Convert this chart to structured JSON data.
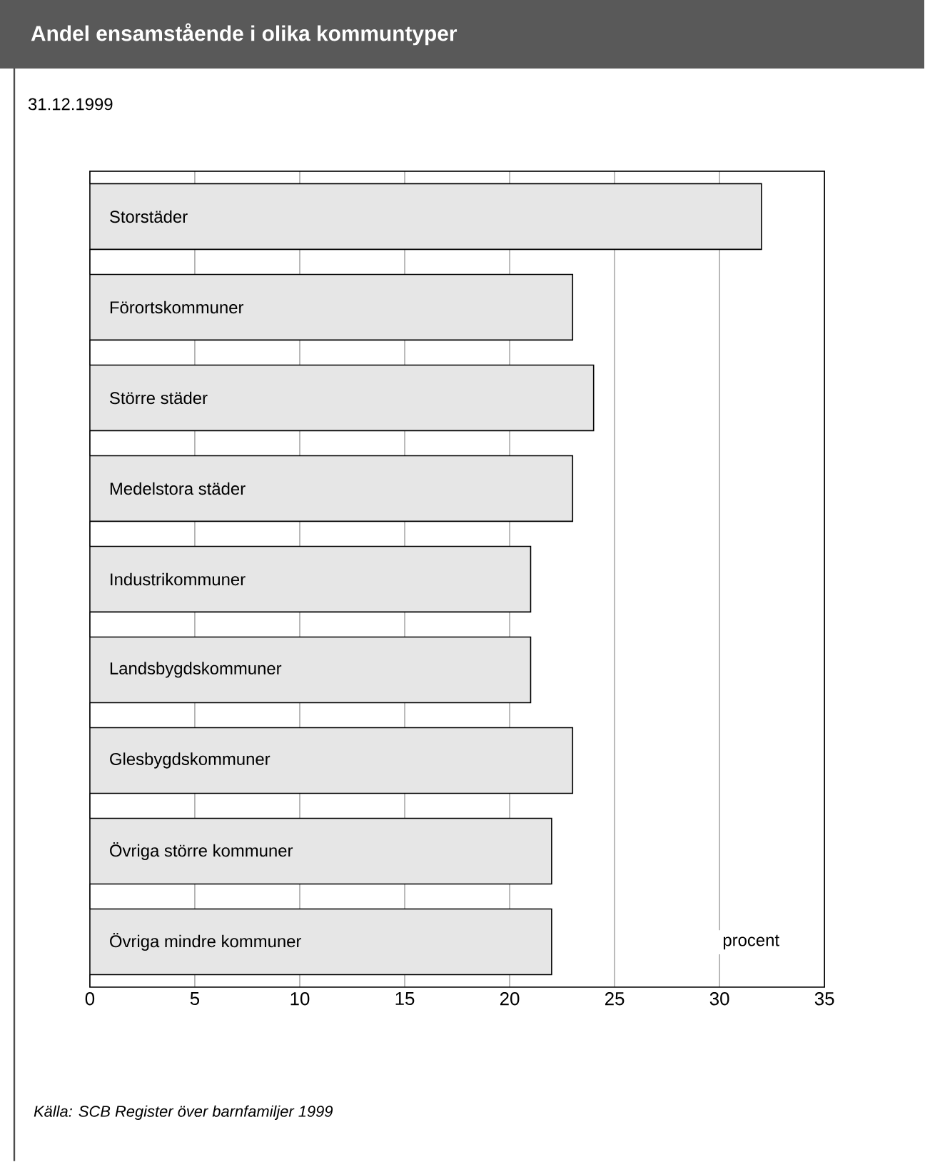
{
  "chart_data": {
    "type": "bar",
    "orientation": "horizontal",
    "title": "Andel ensamstående i olika kommuntyper",
    "subtitle": "31.12.1999",
    "xlabel": "procent",
    "categories": [
      "Storstäder",
      "Förortskommuner",
      "Större städer",
      "Medelstora städer",
      "Industrikommuner",
      "Landsbygdskommuner",
      "Glesbygdskommuner",
      "Övriga större kommuner",
      "Övriga mindre kommuner"
    ],
    "values": [
      32,
      23,
      24,
      23,
      21,
      21,
      23,
      22,
      22
    ],
    "color": "#e6e6e6",
    "xlim": [
      0,
      35
    ],
    "xticks": [
      0,
      5,
      10,
      15,
      20,
      25,
      30,
      35
    ],
    "grid": "x",
    "annotations": [
      "Källa: SCB Register över barnfamiljer 1999"
    ]
  }
}
